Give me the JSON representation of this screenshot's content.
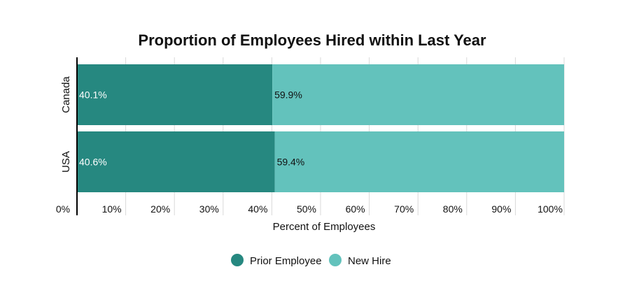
{
  "chart_data": {
    "type": "bar",
    "orientation": "horizontal",
    "stacked": true,
    "title": "Proportion of Employees Hired within Last Year",
    "xlabel": "Percent of Employees",
    "ylabel": "",
    "xlim": [
      0,
      100
    ],
    "x_ticks": [
      "0%",
      "10%",
      "20%",
      "30%",
      "40%",
      "50%",
      "60%",
      "70%",
      "80%",
      "90%",
      "100%"
    ],
    "categories": [
      "Canada",
      "USA"
    ],
    "series": [
      {
        "name": "Prior Employee",
        "color": "#268880",
        "label_color": "#ffffff",
        "values": [
          40.1,
          40.6
        ],
        "labels": [
          "40.1%",
          "40.6%"
        ]
      },
      {
        "name": "New Hire",
        "color": "#63c2bc",
        "label_color": "#111111",
        "values": [
          59.9,
          59.4
        ],
        "labels": [
          "59.9%",
          "59.4%"
        ]
      }
    ],
    "grid": true,
    "legend_position": "bottom"
  }
}
